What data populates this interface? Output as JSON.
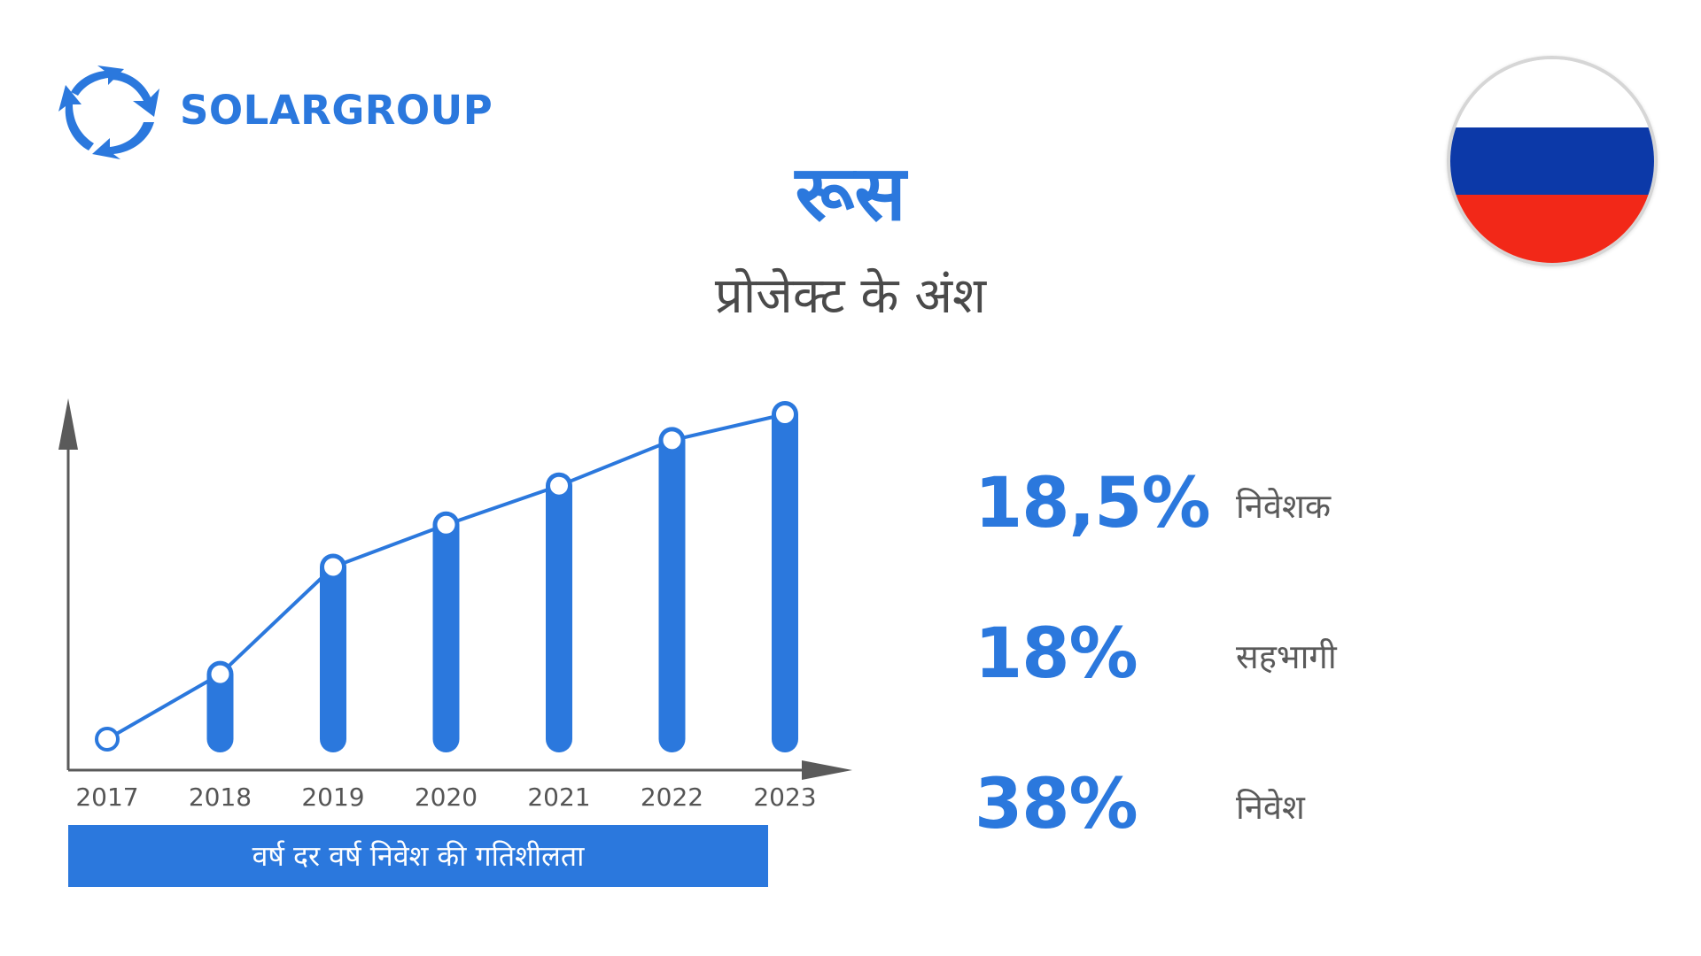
{
  "brand": {
    "name": "SOLARGROUP"
  },
  "title": "रूस",
  "subtitle": "प्रोजेक्ट के अंश",
  "flag": {
    "colors": [
      "#ffffff",
      "#0c39a8",
      "#f22818"
    ]
  },
  "colors": {
    "accent": "#2b78dd",
    "axis": "#5a5a5a",
    "text": "#4a4a4a"
  },
  "chart_data": {
    "type": "bar",
    "title": "वर्ष दर वर्ष निवेश की गतिशीलता",
    "categories": [
      "2017",
      "2018",
      "2019",
      "2020",
      "2021",
      "2022",
      "2023"
    ],
    "series": [
      {
        "values": [
          0,
          20,
          53,
          66,
          78,
          92,
          100
        ]
      }
    ],
    "overlay_line": true,
    "ylim": [
      0,
      110
    ],
    "grid": false
  },
  "stats": [
    {
      "value": "18,5%",
      "label": "निवेशक"
    },
    {
      "value": "18%",
      "label": "सहभागी"
    },
    {
      "value": "38%",
      "label": "निवेश"
    }
  ]
}
